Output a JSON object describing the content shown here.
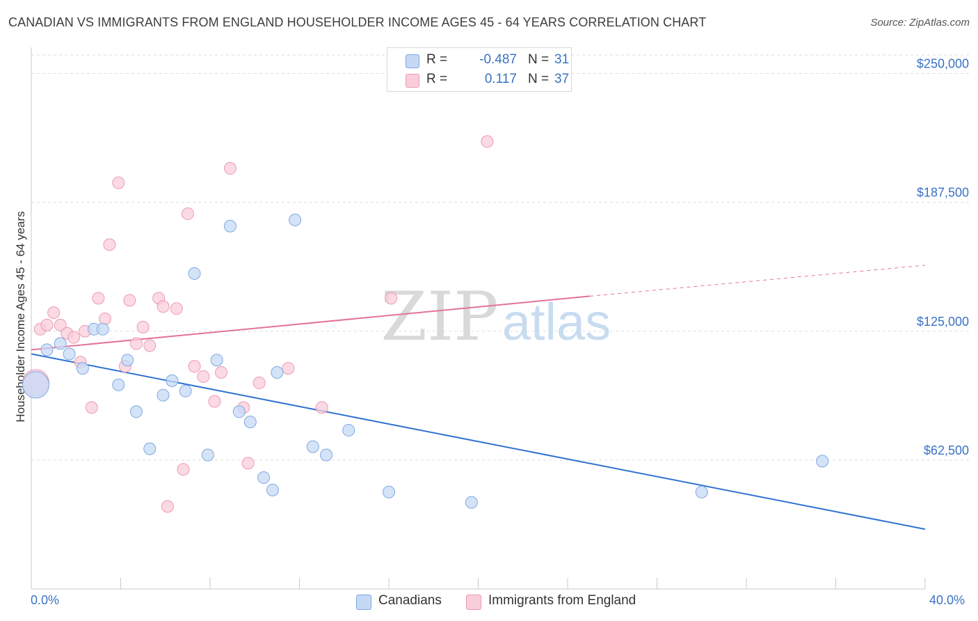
{
  "header": {
    "title": "CANADIAN VS IMMIGRANTS FROM ENGLAND HOUSEHOLDER INCOME AGES 45 - 64 YEARS CORRELATION CHART",
    "source": "Source: ZipAtlas.com"
  },
  "watermark": {
    "zip": "ZIP",
    "atlas": "atlas"
  },
  "legend_top": [
    {
      "r_label": "R =",
      "r_value": "-0.487",
      "n_label": "N =",
      "n_value": "31"
    },
    {
      "r_label": "R =",
      "r_value": "0.117",
      "n_label": "N =",
      "n_value": "37"
    }
  ],
  "colors": {
    "blue_fill": "#c5d9f5",
    "blue_stroke": "#7fa8e0",
    "blue_line": "#2f72d0",
    "pink_fill": "#f9cdd9",
    "pink_stroke": "#ec9ab2",
    "pink_line": "#e4729a",
    "axis_text": "#3a72c4",
    "grid": "#dddddd"
  },
  "chart_data": {
    "type": "scatter",
    "title": "CANADIAN VS IMMIGRANTS FROM ENGLAND HOUSEHOLDER INCOME AGES 45 - 64 YEARS CORRELATION CHART",
    "xlabel": "",
    "ylabel": "Householder Income Ages 45 - 64 years",
    "xlim": [
      0,
      40
    ],
    "ylim": [
      0,
      262000
    ],
    "x_tick_labels": [
      "0.0%",
      "40.0%"
    ],
    "y_ticks": [
      62500,
      125000,
      187500,
      250000
    ],
    "y_tick_labels": [
      "$62,500",
      "$125,000",
      "$187,500",
      "$250,000"
    ],
    "grid": true,
    "legend_position": "top-center",
    "series": [
      {
        "name": "Canadians",
        "color": "#2f72d0",
        "r": -0.487,
        "n": 31,
        "trend": {
          "x": [
            0,
            40
          ],
          "y": [
            114000,
            29000
          ]
        },
        "points": [
          {
            "x": 0.2,
            "y": 99000,
            "big": true
          },
          {
            "x": 0.7,
            "y": 116000
          },
          {
            "x": 1.3,
            "y": 119000
          },
          {
            "x": 1.7,
            "y": 114000
          },
          {
            "x": 2.3,
            "y": 107000
          },
          {
            "x": 2.8,
            "y": 126000
          },
          {
            "x": 3.2,
            "y": 126000
          },
          {
            "x": 3.9,
            "y": 99000
          },
          {
            "x": 4.3,
            "y": 111000
          },
          {
            "x": 4.7,
            "y": 86000
          },
          {
            "x": 5.3,
            "y": 68000
          },
          {
            "x": 5.9,
            "y": 94000
          },
          {
            "x": 6.3,
            "y": 101000
          },
          {
            "x": 6.9,
            "y": 96000
          },
          {
            "x": 7.3,
            "y": 153000
          },
          {
            "x": 7.9,
            "y": 65000
          },
          {
            "x": 8.3,
            "y": 111000
          },
          {
            "x": 8.9,
            "y": 176000
          },
          {
            "x": 9.3,
            "y": 86000
          },
          {
            "x": 9.8,
            "y": 81000
          },
          {
            "x": 10.4,
            "y": 54000
          },
          {
            "x": 10.8,
            "y": 48000
          },
          {
            "x": 11.0,
            "y": 105000
          },
          {
            "x": 11.8,
            "y": 179000
          },
          {
            "x": 12.6,
            "y": 69000
          },
          {
            "x": 13.2,
            "y": 65000
          },
          {
            "x": 14.2,
            "y": 77000
          },
          {
            "x": 16.0,
            "y": 47000
          },
          {
            "x": 19.7,
            "y": 42000
          },
          {
            "x": 30.0,
            "y": 47000
          },
          {
            "x": 35.4,
            "y": 62000
          }
        ]
      },
      {
        "name": "Immigrants from England",
        "color": "#e4729a",
        "r": 0.117,
        "n": 37,
        "trend": {
          "x": [
            0,
            25
          ],
          "y": [
            116000,
            142000
          ]
        },
        "trend_ext": {
          "x": [
            25,
            40
          ],
          "y": [
            142000,
            157000
          ]
        },
        "points": [
          {
            "x": 0.2,
            "y": 100000,
            "big": true
          },
          {
            "x": 0.4,
            "y": 126000
          },
          {
            "x": 0.7,
            "y": 128000
          },
          {
            "x": 1.0,
            "y": 134000
          },
          {
            "x": 1.3,
            "y": 128000
          },
          {
            "x": 1.6,
            "y": 124000
          },
          {
            "x": 1.9,
            "y": 122000
          },
          {
            "x": 2.2,
            "y": 110000
          },
          {
            "x": 2.4,
            "y": 125000
          },
          {
            "x": 2.7,
            "y": 88000
          },
          {
            "x": 3.0,
            "y": 141000
          },
          {
            "x": 3.3,
            "y": 131000
          },
          {
            "x": 3.5,
            "y": 167000
          },
          {
            "x": 3.9,
            "y": 197000
          },
          {
            "x": 4.2,
            "y": 108000
          },
          {
            "x": 4.4,
            "y": 140000
          },
          {
            "x": 4.7,
            "y": 119000
          },
          {
            "x": 5.0,
            "y": 127000
          },
          {
            "x": 5.3,
            "y": 118000
          },
          {
            "x": 5.7,
            "y": 141000
          },
          {
            "x": 5.9,
            "y": 137000
          },
          {
            "x": 6.1,
            "y": 40000
          },
          {
            "x": 6.5,
            "y": 136000
          },
          {
            "x": 6.8,
            "y": 58000
          },
          {
            "x": 7.0,
            "y": 182000
          },
          {
            "x": 7.3,
            "y": 108000
          },
          {
            "x": 7.7,
            "y": 103000
          },
          {
            "x": 8.2,
            "y": 91000
          },
          {
            "x": 8.5,
            "y": 105000
          },
          {
            "x": 8.9,
            "y": 204000
          },
          {
            "x": 9.5,
            "y": 88000
          },
          {
            "x": 9.7,
            "y": 61000
          },
          {
            "x": 10.2,
            "y": 100000
          },
          {
            "x": 11.5,
            "y": 107000
          },
          {
            "x": 13.0,
            "y": 88000
          },
          {
            "x": 16.1,
            "y": 141000
          },
          {
            "x": 20.4,
            "y": 217000
          }
        ]
      }
    ]
  }
}
